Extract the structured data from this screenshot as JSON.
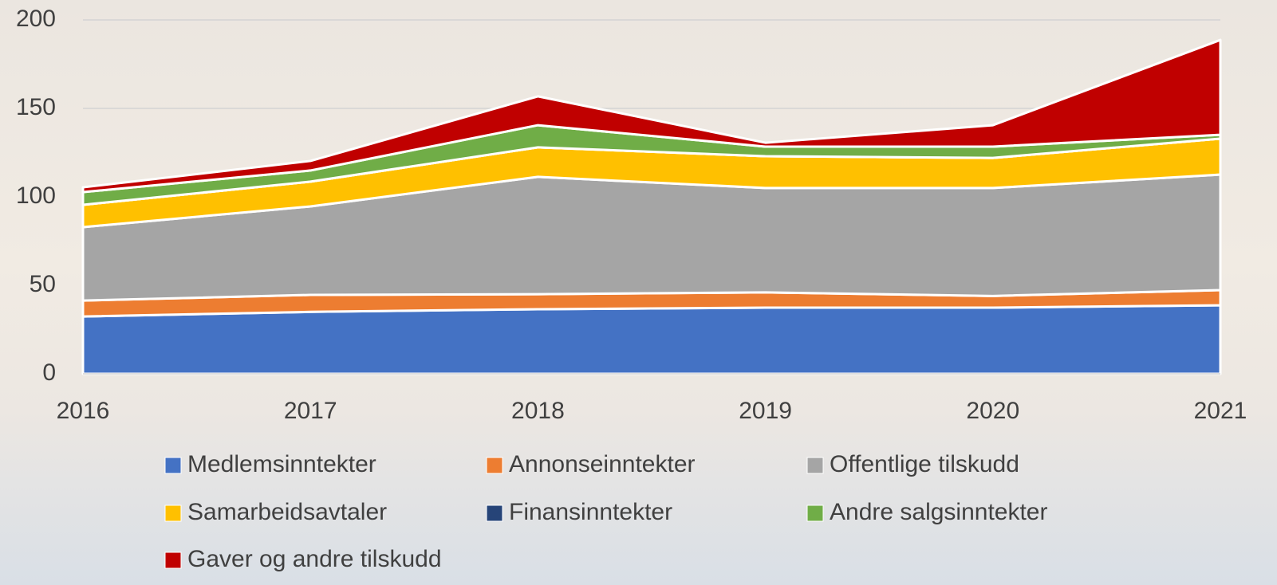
{
  "chart_data": {
    "type": "stacked_area",
    "x": [
      2016,
      2017,
      2018,
      2019,
      2020,
      2021
    ],
    "xlim": [
      2016,
      2021
    ],
    "xticks": [
      2016,
      2017,
      2018,
      2019,
      2020,
      2021
    ],
    "ylim": [
      0,
      200
    ],
    "yticks": [
      0,
      50,
      100,
      150,
      200
    ],
    "grid": true,
    "legend": "bottom",
    "series": [
      {
        "name": "Medlemsinntekter",
        "color": "#4472c4",
        "values": [
          32.4,
          35,
          36.5,
          37.4,
          37.4,
          38.7
        ]
      },
      {
        "name": "Annonseinntekter",
        "color": "#ed7d31",
        "values": [
          9,
          9.6,
          8.5,
          8.6,
          6.6,
          8.6
        ]
      },
      {
        "name": "Offentlige tilskudd",
        "color": "#a5a5a5",
        "values": [
          41.5,
          50,
          66.3,
          59,
          61,
          65.3
        ]
      },
      {
        "name": "Samarbeidsavtaler",
        "color": "#ffc000",
        "values": [
          12.6,
          14,
          16.7,
          18,
          17,
          20.3
        ]
      },
      {
        "name": "Finansinntekter",
        "color": "#264478",
        "values": [
          0,
          0,
          0,
          0,
          0,
          0
        ]
      },
      {
        "name": "Andre salgsinntekter",
        "color": "#70ad47",
        "values": [
          7.2,
          6.3,
          12.5,
          5.4,
          6.4,
          2.2
        ]
      },
      {
        "name": "Gaver og andre tilskudd",
        "color": "#c00000",
        "values": [
          2.7,
          5.4,
          16.3,
          2.2,
          12.1,
          53.6
        ]
      }
    ]
  }
}
